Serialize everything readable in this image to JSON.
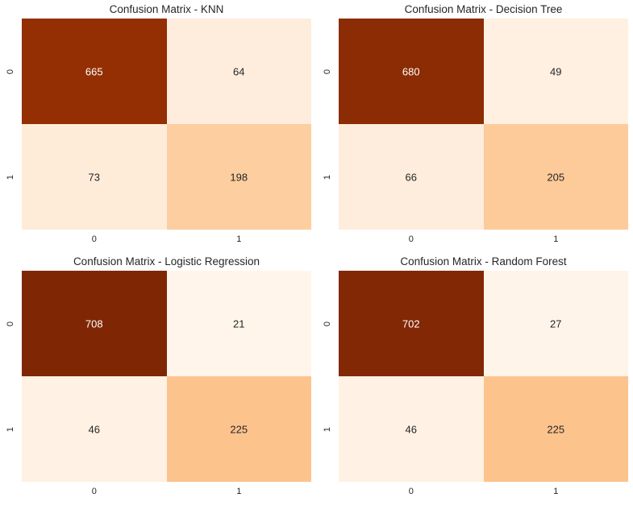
{
  "chart_data": [
    {
      "type": "heatmap",
      "title": "Confusion Matrix - KNN",
      "x_tick_labels": [
        "0",
        "1"
      ],
      "y_tick_labels": [
        "0",
        "1"
      ],
      "values": [
        [
          665,
          64
        ],
        [
          73,
          198
        ]
      ],
      "colormap": "Oranges",
      "color_range": [
        21,
        708
      ],
      "colorbar": false,
      "annotations": true
    },
    {
      "type": "heatmap",
      "title": "Confusion Matrix - Decision Tree",
      "x_tick_labels": [
        "0",
        "1"
      ],
      "y_tick_labels": [
        "0",
        "1"
      ],
      "values": [
        [
          680,
          49
        ],
        [
          66,
          205
        ]
      ],
      "colormap": "Oranges",
      "color_range": [
        21,
        708
      ],
      "colorbar": false,
      "annotations": true
    },
    {
      "type": "heatmap",
      "title": "Confusion Matrix - Logistic Regression",
      "x_tick_labels": [
        "0",
        "1"
      ],
      "y_tick_labels": [
        "0",
        "1"
      ],
      "values": [
        [
          708,
          21
        ],
        [
          46,
          225
        ]
      ],
      "colormap": "Oranges",
      "color_range": [
        21,
        708
      ],
      "colorbar": false,
      "annotations": true
    },
    {
      "type": "heatmap",
      "title": "Confusion Matrix - Random Forest",
      "x_tick_labels": [
        "0",
        "1"
      ],
      "y_tick_labels": [
        "0",
        "1"
      ],
      "values": [
        [
          702,
          27
        ],
        [
          46,
          225
        ]
      ],
      "colormap": "Oranges",
      "color_range": [
        21,
        708
      ],
      "colorbar": false,
      "annotations": true
    }
  ],
  "colors": {
    "low": "#fff5eb",
    "high": "#7f2704",
    "text_dark": "#262626",
    "text_light": "#ffffff"
  }
}
